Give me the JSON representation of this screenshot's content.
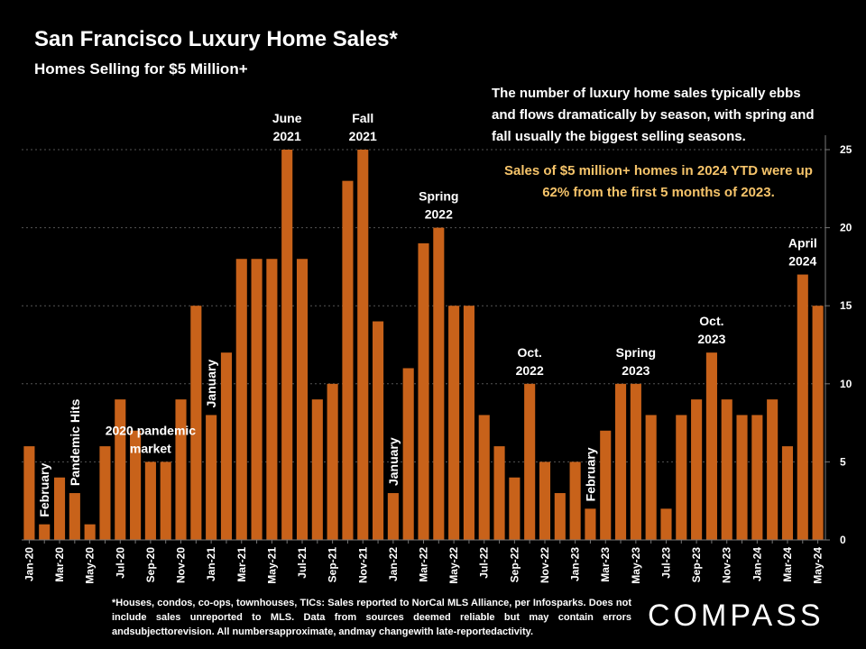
{
  "header": {
    "title": "San Francisco Luxury Home Sales*",
    "subtitle": "Homes Selling for $5 Million+"
  },
  "notes": {
    "main": "The number of luxury home sales typically ebbs and flows dramatically by season, with spring and fall usually the biggest selling seasons.",
    "highlight": "Sales of $5 million+ homes in 2024 YTD were up 62% from the first 5 months of 2023."
  },
  "footnote": "*Houses, condos, co-ops, townhouses, TICs: Sales reported to NorCal MLS Alliance, per Infosparks. Does not include sales unreported to MLS. Data from sources deemed reliable but may contain errors andsubjecttorevision. All numbersapproximate, andmay changewith late-reportedactivity.",
  "logo": "COMPASS",
  "colors": {
    "bar": "#C8621A",
    "highlight": "#F6C46A",
    "background": "#000000"
  },
  "chart_data": {
    "type": "bar",
    "title": "San Francisco Luxury Home Sales*",
    "subtitle": "Homes Selling for $5 Million+",
    "ylim": [
      0,
      25
    ],
    "yticks": [
      0,
      5,
      10,
      15,
      20,
      25
    ],
    "y_axis_side": "right",
    "grid": true,
    "months": [
      "Jan-20",
      "Feb-20",
      "Mar-20",
      "Apr-20",
      "May-20",
      "Jun-20",
      "Jul-20",
      "Aug-20",
      "Sep-20",
      "Oct-20",
      "Nov-20",
      "Dec-20",
      "Jan-21",
      "Feb-21",
      "Mar-21",
      "Apr-21",
      "May-21",
      "Jun-21",
      "Jul-21",
      "Aug-21",
      "Sep-21",
      "Oct-21",
      "Nov-21",
      "Dec-21",
      "Jan-22",
      "Feb-22",
      "Mar-22",
      "Apr-22",
      "May-22",
      "Jun-22",
      "Jul-22",
      "Aug-22",
      "Sep-22",
      "Oct-22",
      "Nov-22",
      "Dec-22",
      "Jan-23",
      "Feb-23",
      "Mar-23",
      "Apr-23",
      "May-23",
      "Jun-23",
      "Jul-23",
      "Aug-23",
      "Sep-23",
      "Oct-23",
      "Nov-23",
      "Dec-23",
      "Jan-24",
      "Feb-24",
      "Mar-24",
      "Apr-24",
      "May-24"
    ],
    "tick_labels": [
      "Jan-20",
      "",
      "Mar-20",
      "",
      "May-20",
      "",
      "Jul-20",
      "",
      "Sep-20",
      "",
      "Nov-20",
      "",
      "Jan-21",
      "",
      "Mar-21",
      "",
      "May-21",
      "",
      "Jul-21",
      "",
      "Sep-21",
      "",
      "Nov-21",
      "",
      "Jan-22",
      "",
      "Mar-22",
      "",
      "May-22",
      "",
      "Jul-22",
      "",
      "Sep-22",
      "",
      "Nov-22",
      "",
      "Jan-23",
      "",
      "Mar-23",
      "",
      "May-23",
      "",
      "Jul-23",
      "",
      "Sep-23",
      "",
      "Nov-23",
      "",
      "Jan-24",
      "",
      "Mar-24",
      "",
      "May-24"
    ],
    "values": [
      6,
      1,
      4,
      3,
      1,
      6,
      9,
      7,
      5,
      5,
      9,
      15,
      8,
      12,
      18,
      18,
      18,
      25,
      18,
      9,
      10,
      23,
      25,
      14,
      3,
      11,
      19,
      20,
      15,
      15,
      8,
      6,
      4,
      10,
      5,
      3,
      5,
      2,
      7,
      10,
      10,
      8,
      2,
      8,
      9,
      12,
      9,
      8,
      8,
      9,
      6,
      17,
      15
    ],
    "annotations": [
      {
        "index": 1,
        "text": "February",
        "rotated": true
      },
      {
        "index": 3,
        "text": "Pandemic Hits",
        "rotated": true
      },
      {
        "index": 8,
        "lines": [
          "2020 pandemic",
          "market"
        ]
      },
      {
        "index": 12,
        "text": "January",
        "rotated": true
      },
      {
        "index": 17,
        "lines": [
          "June",
          "2021"
        ]
      },
      {
        "index": 22,
        "lines": [
          "Fall",
          "2021"
        ]
      },
      {
        "index": 24,
        "text": "January",
        "rotated": true
      },
      {
        "index": 27,
        "lines": [
          "Spring",
          "2022"
        ]
      },
      {
        "index": 33,
        "lines": [
          "Oct.",
          "2022"
        ]
      },
      {
        "index": 37,
        "text": "February",
        "rotated": true
      },
      {
        "index": 40,
        "lines": [
          "Spring",
          "2023"
        ]
      },
      {
        "index": 45,
        "lines": [
          "Oct.",
          "2023"
        ]
      },
      {
        "index": 51,
        "lines": [
          "April",
          "2024"
        ]
      }
    ]
  }
}
